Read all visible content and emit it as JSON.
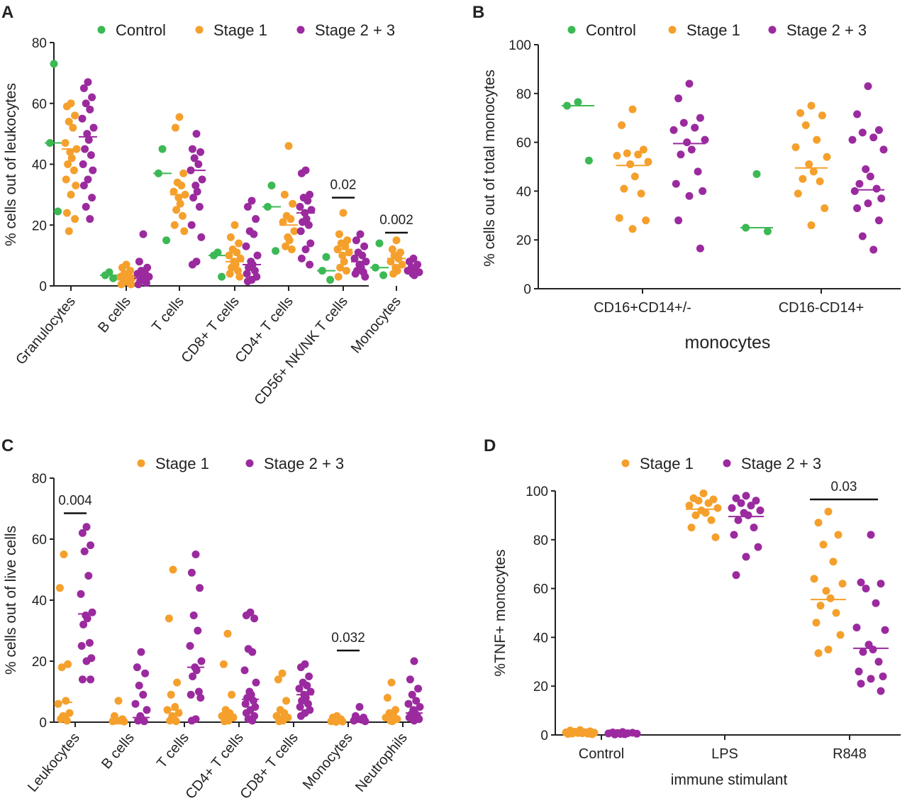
{
  "colors": {
    "control": "#3cb954",
    "stage1": "#f5a02c",
    "stage23": "#9b2a9f"
  },
  "chart_data": [
    {
      "panel": "A",
      "type": "scatter",
      "ylabel": "% cells out of leukocytes",
      "ylim": [
        0,
        80
      ],
      "yticks": [
        0,
        20,
        40,
        60,
        80
      ],
      "legend": [
        "Control",
        "Stage 1",
        "Stage 2 + 3"
      ],
      "categories": [
        "Granulocytes",
        "B cells",
        "T cells",
        "CD8+ T cells",
        "CD4+ T cells",
        "CD56+ NK/NK T cells",
        "Monocytes"
      ],
      "series": [
        {
          "name": "Control",
          "color_key": "control",
          "values": [
            [
              73,
              47,
              24.5
            ],
            [
              4.5,
              3.5,
              2.5
            ],
            [
              45,
              37,
              15
            ],
            [
              11,
              10,
              3
            ],
            [
              33,
              26,
              11.5
            ],
            [
              9.5,
              5,
              2
            ],
            [
              14,
              6,
              3.5
            ]
          ],
          "medians": [
            47,
            3.5,
            37,
            10,
            26,
            5,
            6
          ]
        },
        {
          "name": "Stage 1",
          "color_key": "stage1",
          "values": [
            [
              60,
              59,
              56,
              54,
              52,
              47,
              45,
              44,
              42,
              40,
              38,
              35,
              33,
              30,
              24,
              22,
              18
            ],
            [
              7,
              6,
              5,
              4,
              3.5,
              3,
              2.5,
              2,
              1.5,
              1,
              1,
              0.5,
              0.5
            ],
            [
              55.5,
              52,
              37,
              34,
              33,
              31,
              30,
              29,
              27,
              25,
              23,
              20,
              18
            ],
            [
              20,
              16,
              14,
              12,
              11,
              10,
              9,
              8,
              7,
              6,
              5,
              4,
              3
            ],
            [
              46,
              30,
              27,
              23,
              22,
              21,
              18,
              16,
              15,
              13,
              12
            ],
            [
              24,
              17,
              15,
              14,
              13,
              12,
              11,
              10,
              8,
              6,
              5,
              3
            ],
            [
              15,
              12,
              11,
              10,
              9,
              8,
              7,
              6,
              5,
              4
            ]
          ],
          "medians": [
            45,
            2,
            30,
            8,
            20,
            12,
            9
          ]
        },
        {
          "name": "Stage 2 + 3",
          "color_key": "stage23",
          "values": [
            [
              67,
              65,
              62,
              60,
              58,
              55,
              52,
              50,
              48,
              45,
              43,
              40,
              38,
              35,
              33,
              29,
              26,
              22
            ],
            [
              17,
              8,
              6,
              5,
              4,
              4,
              3,
              2.5,
              2,
              1.5,
              1,
              0.5
            ],
            [
              50,
              45,
              44,
              42,
              40,
              38,
              35,
              33,
              31,
              29,
              26,
              20,
              16,
              8,
              7
            ],
            [
              28,
              26,
              22,
              18,
              17,
              13,
              10,
              8,
              7,
              6,
              5,
              4,
              3,
              2,
              1.5
            ],
            [
              38,
              37,
              30,
              29,
              28,
              26,
              25,
              24,
              22,
              21,
              20,
              18,
              14,
              12,
              9,
              7
            ],
            [
              17,
              15,
              13,
              11,
              10,
              9,
              8,
              7,
              6,
              5,
              4.5,
              4,
              3
            ],
            [
              9,
              8,
              7,
              6,
              5.5,
              5,
              4.5,
              4,
              3.5
            ]
          ],
          "medians": [
            49,
            2.5,
            38,
            7,
            24,
            8,
            5
          ]
        }
      ],
      "annotations": [
        {
          "label": "0.02",
          "category_index": 5,
          "y": 29
        },
        {
          "label": "0.002",
          "category_index": 6,
          "y": 17.5
        }
      ]
    },
    {
      "panel": "B",
      "type": "scatter",
      "ylabel": "% cells out of total monocytes",
      "xlabel": "monocytes",
      "ylim": [
        0,
        100
      ],
      "yticks": [
        0,
        20,
        40,
        60,
        80,
        100
      ],
      "legend": [
        "Control",
        "Stage 1",
        "Stage 2 + 3"
      ],
      "categories": [
        "CD16+CD14+/-",
        "CD16-CD14+"
      ],
      "series": [
        {
          "name": "Control",
          "color_key": "control",
          "values": [
            [
              76.5,
              75,
              52.5
            ],
            [
              47,
              25,
              23.5
            ]
          ],
          "medians": [
            75,
            25
          ]
        },
        {
          "name": "Stage 1",
          "color_key": "stage1",
          "values": [
            [
              73.5,
              67,
              57,
              55.5,
              55,
              54.5,
              52,
              51,
              46,
              41,
              39,
              29,
              28,
              24.5
            ],
            [
              75,
              72,
              71,
              67,
              61,
              58,
              54,
              51,
              48,
              45,
              44,
              39,
              33,
              26
            ]
          ],
          "medians": [
            50.5,
            49.5
          ]
        },
        {
          "name": "Stage 2 + 3",
          "color_key": "stage23",
          "values": [
            [
              84,
              78,
              70,
              68,
              66,
              65,
              61,
              60,
              57,
              55,
              48,
              43,
              40,
              38,
              28,
              16.5
            ],
            [
              83,
              71.5,
              65,
              64,
              62,
              61,
              57,
              49,
              46,
              43,
              41,
              40,
              37,
              35,
              33,
              28,
              21.5,
              16
            ]
          ],
          "medians": [
            59.5,
            40.5
          ]
        }
      ]
    },
    {
      "panel": "C",
      "type": "scatter",
      "ylabel": "% cells out of live cells",
      "ylim": [
        0,
        80
      ],
      "yticks": [
        0,
        20,
        40,
        60,
        80
      ],
      "legend": [
        "Stage 1",
        "Stage 2 + 3"
      ],
      "categories": [
        "Leukocytes",
        "B cells",
        "T cells",
        "CD4+ T cells",
        "CD8+ T cells",
        "Monocytes",
        "Neutrophils"
      ],
      "series": [
        {
          "name": "Stage 1",
          "color_key": "stage1",
          "values": [
            [
              55,
              44,
              19,
              18,
              7,
              6,
              3,
              2,
              1.5,
              1,
              0.5
            ],
            [
              7,
              2,
              1,
              0.5,
              0.5,
              0.3,
              0.2
            ],
            [
              50,
              34,
              13,
              9,
              5,
              4,
              3,
              2,
              1,
              0.5,
              0.3
            ],
            [
              29,
              19,
              9,
              4,
              3,
              2,
              1.5,
              1,
              0.5,
              0.3
            ],
            [
              16,
              14,
              7,
              4,
              3,
              2,
              1.5,
              1,
              0.5,
              0.3
            ],
            [
              2,
              1.5,
              1,
              0.8,
              0.5,
              0.3,
              0.2,
              0.1
            ],
            [
              13,
              8,
              4,
              3,
              2,
              1.5,
              1,
              0.5,
              0.3
            ]
          ],
          "medians": [
            6.5,
            0.5,
            4,
            2.5,
            2,
            0.5,
            1.5
          ]
        },
        {
          "name": "Stage 2 + 3",
          "color_key": "stage23",
          "values": [
            [
              64,
              62,
              58,
              56,
              48,
              42,
              36,
              35,
              34,
              32,
              26,
              25,
              21,
              20,
              14,
              14
            ],
            [
              23,
              18,
              16,
              12,
              9,
              6,
              4,
              2,
              1,
              0.5,
              0.3
            ],
            [
              55,
              49,
              44,
              35,
              30,
              25,
              20,
              18,
              17,
              15,
              10,
              9,
              8,
              1,
              0.5
            ],
            [
              36,
              35,
              34,
              24,
              23,
              17,
              13,
              10,
              9,
              8,
              7,
              6,
              5,
              4,
              3,
              2,
              1,
              0.5
            ],
            [
              19,
              18,
              15,
              13,
              12,
              11,
              10,
              9,
              8,
              7,
              6,
              5,
              4,
              3,
              2
            ],
            [
              5,
              2,
              1.5,
              1,
              0.8,
              0.5,
              0.3
            ],
            [
              20,
              14,
              11,
              9,
              7,
              6,
              5,
              4,
              3,
              2.5,
              2,
              1.5,
              1,
              0.5
            ]
          ],
          "medians": [
            35.5,
            1.5,
            18,
            7.5,
            9,
            1,
            3
          ]
        }
      ],
      "annotations": [
        {
          "label": "0.004",
          "category_index": 0,
          "y": 68.5
        },
        {
          "label": "0.032",
          "category_index": 5,
          "y": 23.5
        }
      ]
    },
    {
      "panel": "D",
      "type": "scatter",
      "ylabel": "%TNF+ monocytes",
      "xlabel": "immune stimulant",
      "ylim": [
        0,
        100
      ],
      "yticks": [
        0,
        20,
        40,
        60,
        80,
        100
      ],
      "legend": [
        "Stage 1",
        "Stage 2 + 3"
      ],
      "categories": [
        "Control",
        "LPS",
        "R848"
      ],
      "series": [
        {
          "name": "Stage 1",
          "color_key": "stage1",
          "values": [
            [
              2,
              1.8,
              1.5,
              1.3,
              1.1,
              1,
              0.9,
              0.8,
              0.7,
              0.6,
              0.5,
              0.4,
              0.3
            ],
            [
              99,
              97,
              96.5,
              96,
              95,
              94,
              93,
              92,
              91,
              90,
              88,
              85,
              81
            ],
            [
              91.5,
              87,
              82,
              78,
              71,
              64,
              62,
              59,
              56,
              53,
              50,
              46,
              41,
              35,
              33.5
            ]
          ],
          "medians": [
            0.9,
            92.5,
            55.5
          ]
        },
        {
          "name": "Stage 2 + 3",
          "color_key": "stage23",
          "values": [
            [
              1.2,
              1,
              0.9,
              0.8,
              0.7,
              0.6,
              0.5,
              0.4,
              0.3,
              0.2
            ],
            [
              98,
              97,
              96,
              95,
              94,
              93,
              92,
              91,
              90,
              88,
              85,
              82,
              77,
              73,
              65.5
            ],
            [
              82,
              62.5,
              62,
              60,
              54,
              44,
              43,
              37,
              35,
              34,
              30,
              26,
              24,
              23,
              21,
              18
            ]
          ],
          "medians": [
            0.6,
            89.5,
            35.5
          ]
        }
      ],
      "annotations": [
        {
          "label": "0.03",
          "category_index": 2,
          "y": 96.5
        }
      ]
    }
  ]
}
